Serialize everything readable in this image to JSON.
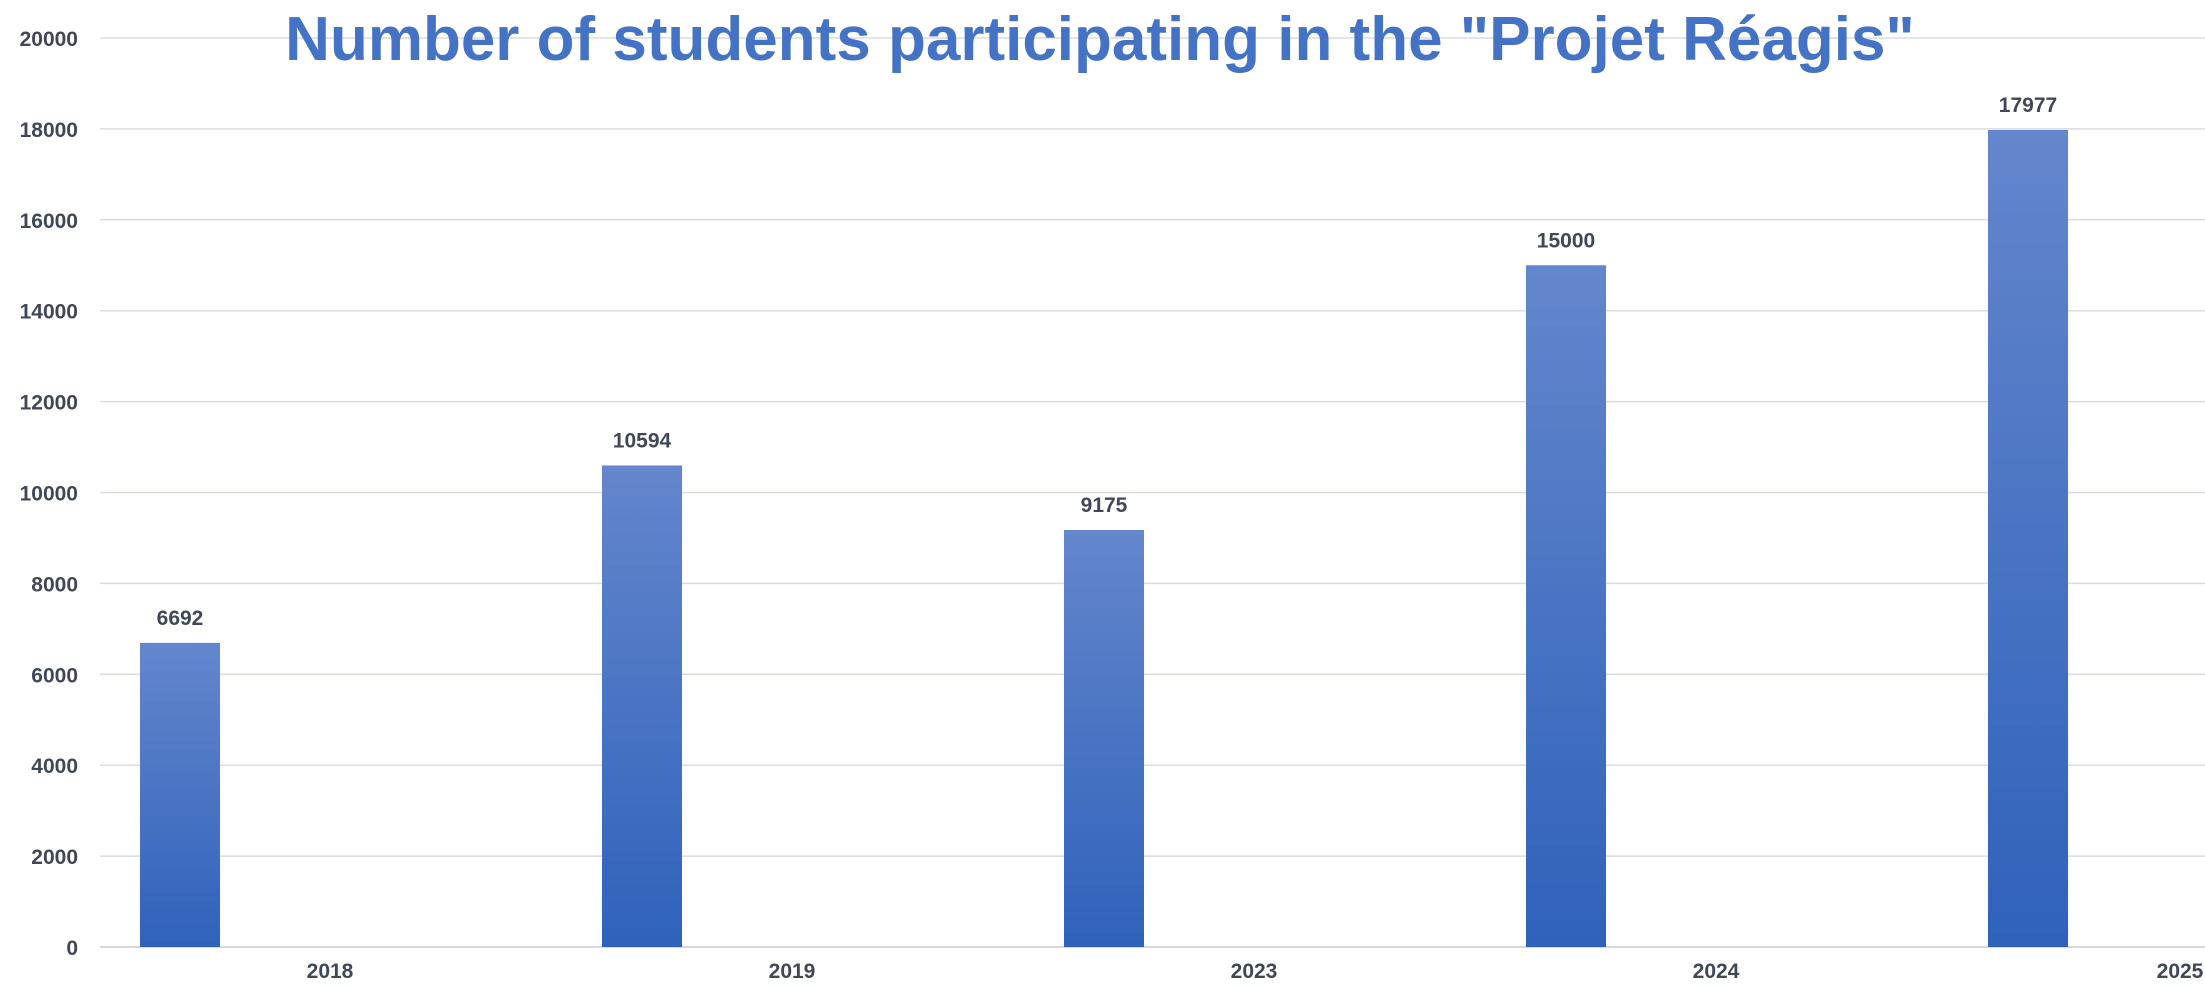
{
  "chart_data": {
    "type": "bar",
    "title": "Number of students participating in the \"Projet Réagis\"",
    "xlabel": "",
    "ylabel": "",
    "categories": [
      "2018",
      "2019",
      "2023",
      "2024",
      "2025"
    ],
    "values": [
      6692,
      10594,
      9175,
      15000,
      17977
    ],
    "data_labels": [
      "6692",
      "10594",
      "9175",
      "15000",
      "17977"
    ],
    "ylim": [
      0,
      20000
    ],
    "yticks": [
      "0",
      "2000",
      "4000",
      "6000",
      "8000",
      "10000",
      "12000",
      "14000",
      "16000",
      "18000",
      "20000"
    ],
    "grid": true,
    "legend": "none",
    "bar_color_top": "#6486CC",
    "bar_color_bottom": "#2F62BA",
    "title_color": "#4472C4"
  }
}
